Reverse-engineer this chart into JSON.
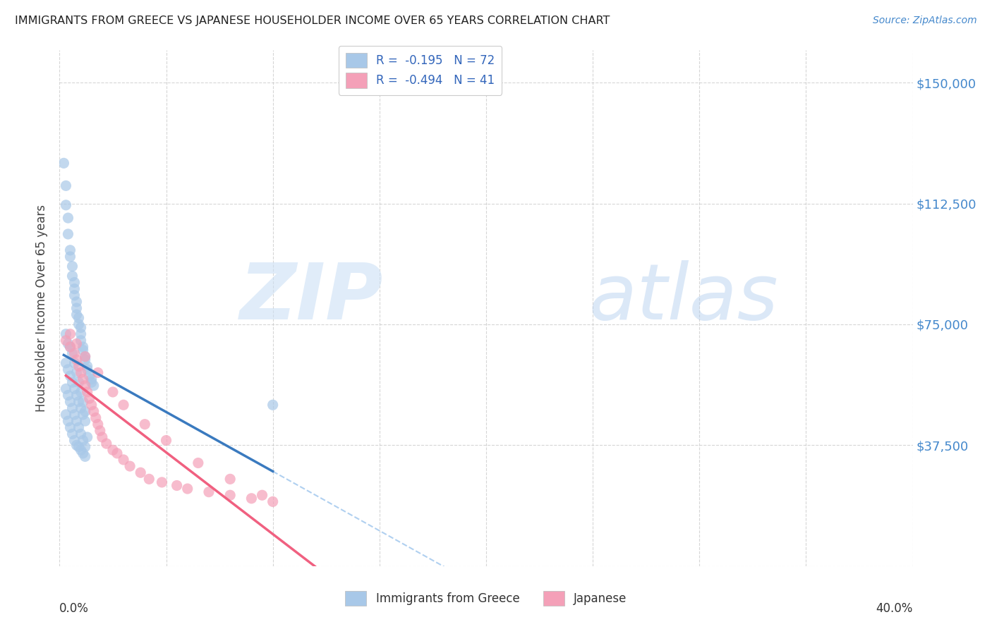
{
  "title": "IMMIGRANTS FROM GREECE VS JAPANESE HOUSEHOLDER INCOME OVER 65 YEARS CORRELATION CHART",
  "source": "Source: ZipAtlas.com",
  "ylabel": "Householder Income Over 65 years",
  "xlim": [
    0.0,
    0.4
  ],
  "ylim": [
    0,
    160000
  ],
  "yticks": [
    0,
    37500,
    75000,
    112500,
    150000
  ],
  "ytick_labels": [
    "",
    "$37,500",
    "$75,000",
    "$112,500",
    "$150,000"
  ],
  "legend_r1": "R =  -0.195   N = 72",
  "legend_r2": "R =  -0.494   N = 41",
  "color_blue": "#a8c8e8",
  "color_pink": "#f4a0b8",
  "trendline_blue": "#3a7abf",
  "trendline_pink": "#f06080",
  "trendline_dashed_color": "#b0d0f0",
  "greece_x": [
    0.002,
    0.003,
    0.003,
    0.004,
    0.004,
    0.005,
    0.005,
    0.006,
    0.006,
    0.007,
    0.007,
    0.007,
    0.008,
    0.008,
    0.008,
    0.009,
    0.009,
    0.01,
    0.01,
    0.01,
    0.011,
    0.011,
    0.012,
    0.012,
    0.013,
    0.013,
    0.014,
    0.015,
    0.015,
    0.016,
    0.003,
    0.004,
    0.005,
    0.006,
    0.007,
    0.008,
    0.009,
    0.01,
    0.011,
    0.012,
    0.003,
    0.004,
    0.005,
    0.006,
    0.007,
    0.008,
    0.009,
    0.01,
    0.011,
    0.012,
    0.003,
    0.004,
    0.005,
    0.006,
    0.007,
    0.008,
    0.009,
    0.01,
    0.011,
    0.012,
    0.003,
    0.004,
    0.005,
    0.006,
    0.007,
    0.008,
    0.009,
    0.01,
    0.011,
    0.012,
    0.013,
    0.1
  ],
  "greece_y": [
    125000,
    118000,
    112000,
    108000,
    103000,
    98000,
    96000,
    93000,
    90000,
    88000,
    86000,
    84000,
    82000,
    80000,
    78000,
    77000,
    75000,
    74000,
    72000,
    70000,
    68000,
    67000,
    65000,
    64000,
    62000,
    61000,
    59000,
    58000,
    57000,
    56000,
    72000,
    69000,
    68000,
    66000,
    63000,
    60000,
    57000,
    54000,
    51000,
    48000,
    63000,
    61000,
    59000,
    57000,
    55000,
    53000,
    51000,
    49000,
    47000,
    45000,
    55000,
    53000,
    51000,
    49000,
    47000,
    45000,
    43000,
    41000,
    39000,
    37000,
    47000,
    45000,
    43000,
    41000,
    39000,
    37500,
    37000,
    36000,
    35000,
    34000,
    40000,
    50000
  ],
  "japan_x": [
    0.003,
    0.005,
    0.007,
    0.008,
    0.009,
    0.01,
    0.011,
    0.012,
    0.013,
    0.014,
    0.015,
    0.016,
    0.017,
    0.018,
    0.019,
    0.02,
    0.022,
    0.025,
    0.027,
    0.03,
    0.033,
    0.038,
    0.042,
    0.048,
    0.055,
    0.06,
    0.07,
    0.08,
    0.09,
    0.1,
    0.005,
    0.008,
    0.012,
    0.018,
    0.025,
    0.03,
    0.04,
    0.05,
    0.065,
    0.08,
    0.095
  ],
  "japan_y": [
    70000,
    68000,
    66000,
    64000,
    62000,
    60000,
    58000,
    56000,
    54000,
    52000,
    50000,
    48000,
    46000,
    44000,
    42000,
    40000,
    38000,
    36000,
    35000,
    33000,
    31000,
    29000,
    27000,
    26000,
    25000,
    24000,
    23000,
    22000,
    21000,
    20000,
    72000,
    69000,
    65000,
    60000,
    54000,
    50000,
    44000,
    39000,
    32000,
    27000,
    22000
  ]
}
